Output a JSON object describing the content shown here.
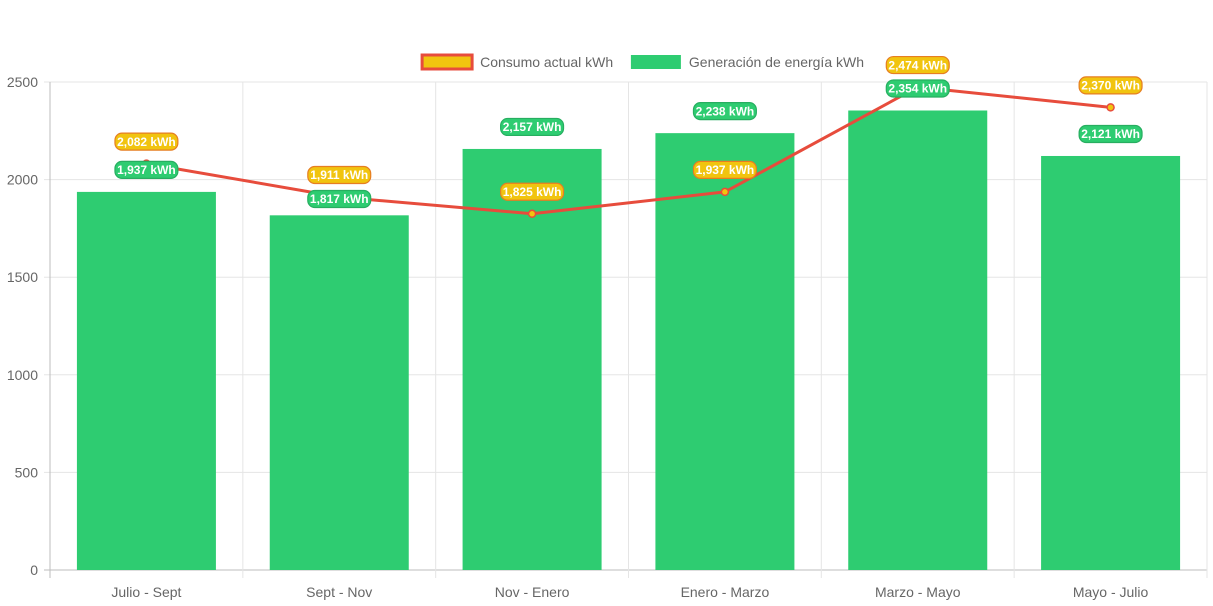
{
  "chart_data": {
    "type": "bar",
    "categories": [
      "Julio - Sept",
      "Sept - Nov",
      "Nov - Enero",
      "Enero - Marzo",
      "Marzo - Mayo",
      "Mayo - Julio"
    ],
    "series": [
      {
        "name": "Consumo actual kWh",
        "render_as": "line",
        "values": [
          2082,
          1911,
          1825,
          1937,
          2474,
          2370
        ],
        "labels": [
          "2,082 kWh",
          "1,911 kWh",
          "1,825 kWh",
          "1,937 kWh",
          "2,474 kWh",
          "2,370 kWh"
        ],
        "line_color": "#e74c3c",
        "point_color": "#f1c40f",
        "label_bg": "#f1c40f",
        "label_border": "#e67e22"
      },
      {
        "name": "Generación de energía kWh",
        "render_as": "bar",
        "values": [
          1937,
          1817,
          2157,
          2238,
          2354,
          2121
        ],
        "labels": [
          "1,937 kWh",
          "1,817 kWh",
          "2,157 kWh",
          "2,238 kWh",
          "2,354 kWh",
          "2,121 kWh"
        ],
        "bar_color": "#2ecc71",
        "label_bg": "#2ecc71",
        "label_border": "#27ae60"
      }
    ],
    "ylim": [
      0,
      2500
    ],
    "yticks": [
      "0",
      "500",
      "1000",
      "1500",
      "2000",
      "2500"
    ],
    "legend_position": "top",
    "grid": true
  }
}
